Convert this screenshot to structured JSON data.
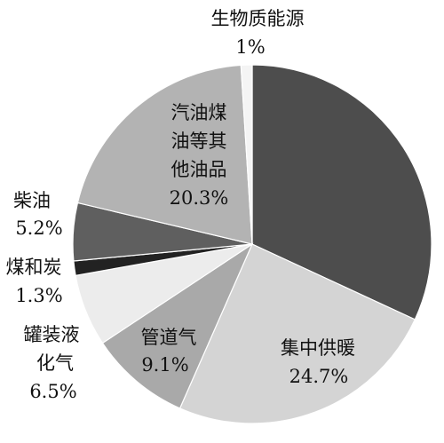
{
  "chart_data": {
    "type": "pie",
    "start_angle_deg": 0,
    "direction": "clockwise",
    "slices": [
      {
        "label": "",
        "value": 31.9,
        "value_text": "",
        "color": "#4d4d4d"
      },
      {
        "label": "集中供暖",
        "value": 24.7,
        "value_text": "24.7%",
        "color": "#d4d4d4"
      },
      {
        "label": "管道气",
        "value": 9.1,
        "value_text": "9.1%",
        "color": "#a9a9a9"
      },
      {
        "label": "罐装液化气",
        "value": 6.5,
        "value_text": "6.5%",
        "color": "#ececec"
      },
      {
        "label": "煤和炭",
        "value": 1.3,
        "value_text": "1.3%",
        "color": "#222222"
      },
      {
        "label": "柴油",
        "value": 5.2,
        "value_text": "5.2%",
        "color": "#5f5f5f"
      },
      {
        "label": "汽油煤油等其他油品",
        "value": 20.3,
        "value_text": "20.3%",
        "color": "#b3b3b3"
      },
      {
        "label": "生物质能源",
        "value": 1.0,
        "value_text": "1%",
        "color": "#f4f4f4"
      }
    ]
  }
}
